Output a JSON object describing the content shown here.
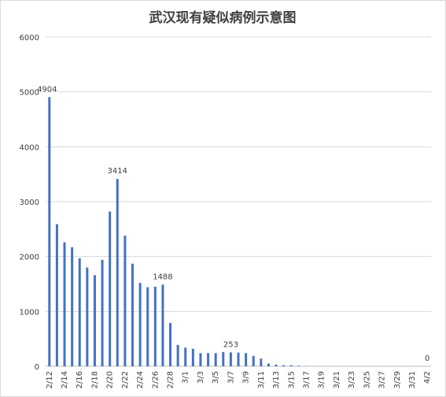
{
  "chart_data": {
    "type": "bar",
    "title": "武汉现有疑似病例示意图",
    "xlabel": "",
    "ylabel": "",
    "ylim": [
      0,
      6000
    ],
    "yticks": [
      0,
      1000,
      2000,
      3000,
      4000,
      5000,
      6000
    ],
    "grid": true,
    "legend": "none",
    "bar_color": "#4472c4",
    "categories": [
      "2/12",
      "2/13",
      "2/14",
      "2/15",
      "2/16",
      "2/17",
      "2/18",
      "2/19",
      "2/20",
      "2/21",
      "2/22",
      "2/23",
      "2/24",
      "2/25",
      "2/26",
      "2/27",
      "2/28",
      "2/29",
      "3/1",
      "3/2",
      "3/3",
      "3/4",
      "3/5",
      "3/6",
      "3/7",
      "3/8",
      "3/9",
      "3/10",
      "3/11",
      "3/12",
      "3/13",
      "3/14",
      "3/15",
      "3/16",
      "3/17",
      "3/18",
      "3/19",
      "3/20",
      "3/21",
      "3/22",
      "3/23",
      "3/24",
      "3/25",
      "3/26",
      "3/27",
      "3/28",
      "3/29",
      "3/30",
      "3/31",
      "4/1",
      "4/2"
    ],
    "tick_labels_shown": [
      "2/12",
      "2/14",
      "2/16",
      "2/18",
      "2/20",
      "2/22",
      "2/24",
      "2/26",
      "2/28",
      "3/1",
      "3/3",
      "3/5",
      "3/7",
      "3/9",
      "3/11",
      "3/13",
      "3/15",
      "3/17",
      "3/19",
      "3/21",
      "3/23",
      "3/25",
      "3/27",
      "3/29",
      "3/31",
      "4/2"
    ],
    "values": [
      4904,
      2590,
      2260,
      2170,
      1970,
      1800,
      1660,
      1940,
      2820,
      3414,
      2380,
      1870,
      1520,
      1440,
      1450,
      1488,
      790,
      390,
      340,
      320,
      240,
      240,
      240,
      260,
      253,
      250,
      240,
      190,
      140,
      50,
      30,
      20,
      20,
      10,
      5,
      2,
      2,
      1,
      1,
      1,
      1,
      0,
      0,
      0,
      0,
      0,
      0,
      0,
      0,
      0,
      0
    ],
    "data_labels": [
      {
        "category": "2/12",
        "text": "4904"
      },
      {
        "category": "2/21",
        "text": "3414"
      },
      {
        "category": "2/27",
        "text": "1488"
      },
      {
        "category": "3/7",
        "text": "253"
      },
      {
        "category": "4/2",
        "text": "0"
      }
    ]
  }
}
